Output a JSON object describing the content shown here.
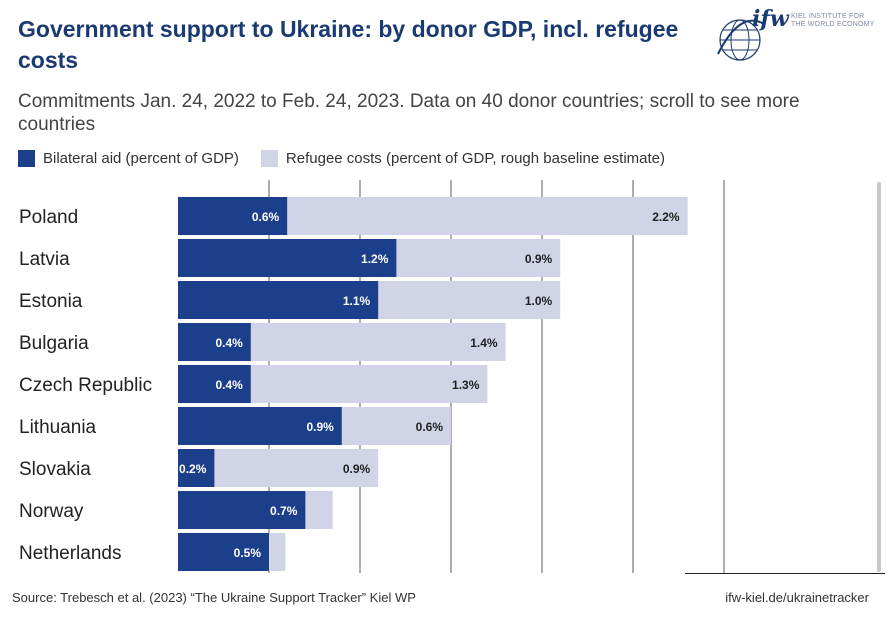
{
  "header": {
    "title": "Government support to Ukraine: by donor GDP, incl. refugee costs",
    "subtitle": "Commitments Jan. 24, 2022 to Feb. 24, 2023. Data on 40 donor countries; scroll to see more countries"
  },
  "logo": {
    "mark": "ifw",
    "line1": "KIEL INSTITUTE FOR",
    "line2": "THE WORLD ECONOMY"
  },
  "legend": {
    "bilateral": "Bilateral aid (percent of GDP)",
    "refugee": "Refugee costs (percent of GDP, rough baseline estimate)"
  },
  "colors": {
    "bilateral": "#1c3f8c",
    "refugee": "#d1d3e6",
    "grid": "#333333",
    "title": "#1a3a72"
  },
  "chart_data": {
    "type": "bar",
    "orientation": "horizontal",
    "stacked": true,
    "categories": [
      "Poland",
      "Latvia",
      "Estonia",
      "Bulgaria",
      "Czech Republic",
      "Lithuania",
      "Slovakia",
      "Norway",
      "Netherlands"
    ],
    "series": [
      {
        "name": "Bilateral aid (percent of GDP)",
        "values": [
          0.6,
          1.2,
          1.1,
          0.4,
          0.4,
          0.9,
          0.2,
          0.7,
          0.5
        ],
        "labels": [
          "0.6%",
          "1.2%",
          "1.1%",
          "0.4%",
          "0.4%",
          "0.9%",
          "0.2%",
          "0.7%",
          "0.5%"
        ]
      },
      {
        "name": "Refugee costs (percent of GDP, rough baseline estimate)",
        "values": [
          2.2,
          0.9,
          1.0,
          1.4,
          1.3,
          0.6,
          0.9,
          0.15,
          0.09
        ],
        "labels": [
          "2.2%",
          "0.9%",
          "1.0%",
          "1.4%",
          "1.3%",
          "0.6%",
          "0.9%",
          "",
          ""
        ]
      }
    ],
    "xlim": [
      0,
      3
    ],
    "grid": true,
    "legend_position": "top-left"
  },
  "footer": {
    "source": "Source: Trebesch et al. (2023) “The Ukraine Support Tracker” Kiel WP",
    "link": "ifw-kiel.de/ukrainetracker"
  }
}
